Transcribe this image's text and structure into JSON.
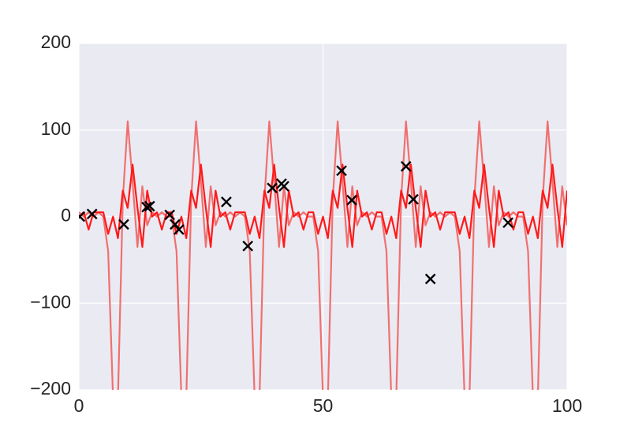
{
  "chart_data": {
    "type": "line",
    "x": [
      0,
      1,
      2,
      3,
      4,
      5,
      6,
      7,
      8,
      9,
      10,
      11,
      12,
      13,
      14,
      15,
      16,
      17,
      18,
      19,
      20,
      21,
      22,
      23,
      24,
      25,
      26,
      27,
      28,
      29,
      30,
      31,
      32,
      33,
      34,
      35,
      36,
      37,
      38,
      39,
      40,
      41,
      42,
      43,
      44,
      45,
      46,
      47,
      48,
      49,
      50,
      51,
      52,
      53,
      54,
      55,
      56,
      57,
      58,
      59,
      60,
      61,
      62,
      63,
      64,
      65,
      66,
      67,
      68,
      69,
      70,
      71,
      72,
      73,
      74,
      75,
      76,
      77,
      78,
      79,
      80,
      81,
      82,
      83,
      84,
      85,
      86,
      87,
      88,
      89,
      90,
      91,
      92,
      93,
      94,
      95,
      96,
      97,
      98,
      99,
      100
    ],
    "series": [
      {
        "type": "line",
        "color": "#f07070",
        "values": [
          5,
          0,
          5,
          0,
          5,
          0,
          -40,
          -210,
          -210,
          20,
          110,
          40,
          -35,
          35,
          -10,
          5,
          0,
          5,
          0,
          0,
          -40,
          -210,
          -210,
          20,
          110,
          40,
          -35,
          35,
          -10,
          5,
          0,
          5,
          0,
          5,
          0,
          -40,
          -210,
          -210,
          20,
          110,
          40,
          -35,
          35,
          -10,
          5,
          0,
          5,
          0,
          0,
          -40,
          -210,
          -210,
          20,
          110,
          40,
          -35,
          35,
          -10,
          5,
          0,
          5,
          0,
          0,
          -40,
          -210,
          -210,
          20,
          110,
          40,
          -35,
          35,
          -10,
          5,
          0,
          5,
          0,
          5,
          0,
          -40,
          -210,
          -210,
          20,
          110,
          40,
          -35,
          35,
          -10,
          5,
          0,
          5,
          0,
          0,
          -40,
          -210,
          -210,
          20,
          110,
          40,
          -35,
          35,
          -10
        ]
      },
      {
        "type": "line",
        "color": "#ff1a1a",
        "values": [
          0,
          5,
          -15,
          5,
          5,
          5,
          -20,
          0,
          -25,
          30,
          10,
          60,
          10,
          -35,
          30,
          0,
          5,
          -15,
          5,
          5,
          -20,
          0,
          -25,
          30,
          10,
          60,
          10,
          -35,
          30,
          0,
          5,
          -15,
          5,
          5,
          5,
          -20,
          0,
          -25,
          30,
          10,
          60,
          10,
          -35,
          30,
          0,
          5,
          -15,
          5,
          5,
          -20,
          0,
          -25,
          30,
          10,
          60,
          10,
          -35,
          30,
          0,
          5,
          -15,
          5,
          5,
          -20,
          0,
          -25,
          30,
          10,
          60,
          10,
          -35,
          30,
          0,
          5,
          -15,
          5,
          5,
          5,
          -20,
          0,
          -25,
          30,
          10,
          60,
          10,
          -35,
          30,
          0,
          5,
          -15,
          5,
          5,
          -20,
          0,
          -25,
          30,
          10,
          60,
          10,
          -35,
          30
        ]
      },
      {
        "type": "scatter",
        "color": "#000000",
        "x": [
          0.2,
          2.7,
          9.2,
          13.9,
          14.5,
          18.6,
          19.7,
          20.5,
          30.2,
          34.6,
          39.6,
          41.5,
          42,
          53.8,
          55.9,
          67,
          68.5,
          72,
          87.9
        ],
        "values": [
          0,
          3,
          -9,
          11,
          12,
          2,
          -9,
          -15,
          17,
          -34,
          33,
          38,
          35,
          53,
          19,
          58,
          20,
          -72,
          -7
        ]
      }
    ],
    "xlim": [
      0,
      100
    ],
    "ylim": [
      -200,
      200
    ],
    "xticks": [
      0,
      50,
      100
    ],
    "yticks": [
      {
        "value": -200,
        "label": "−200"
      },
      {
        "value": -100,
        "label": "−100"
      },
      0,
      100,
      200
    ],
    "grid": true
  }
}
